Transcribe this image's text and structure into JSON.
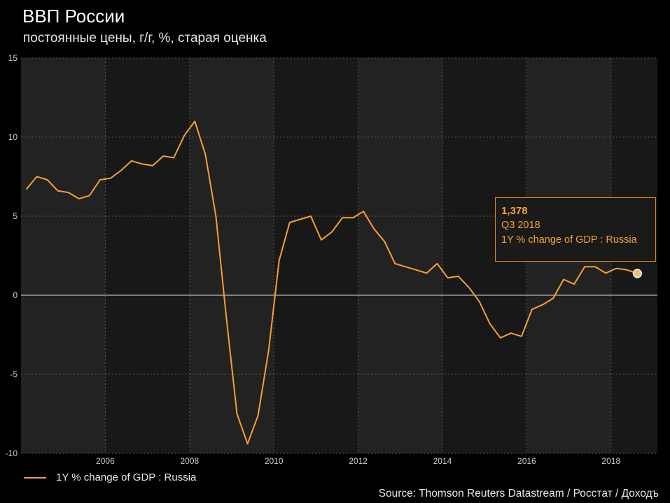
{
  "header": {
    "title": "ВВП России",
    "subtitle": "постоянные цены, г/г, %, старая оценка"
  },
  "footer": {
    "source": "Source: Thomson Reuters Datastream / Росстат / Доходъ"
  },
  "tooltip": {
    "value": "1,378",
    "period": "Q3 2018",
    "series": "1Y % change of GDP : Russia"
  },
  "colors": {
    "background": "#000000",
    "plot_band_light": "#222222",
    "plot_band_dark": "#181818",
    "line": "#f5a031",
    "axis_text": "#cccccc"
  },
  "chart_data": {
    "type": "line",
    "title": "ВВП России",
    "subtitle": "постоянные цены, г/г, %, старая оценка",
    "xlabel": "",
    "ylabel": "",
    "xlim": [
      2004.0,
      2019.1
    ],
    "ylim": [
      -10,
      15
    ],
    "x_ticks": [
      2006,
      2008,
      2010,
      2012,
      2014,
      2016,
      2018
    ],
    "y_ticks": [
      -10,
      -5,
      0,
      5,
      10,
      15
    ],
    "grid": true,
    "legend": "bottom-left",
    "series": [
      {
        "name": "1Y % change of GDP : Russia",
        "color": "#f5a031",
        "x": [
          2004.125,
          2004.375,
          2004.625,
          2004.875,
          2005.125,
          2005.375,
          2005.625,
          2005.875,
          2006.125,
          2006.375,
          2006.625,
          2006.875,
          2007.125,
          2007.375,
          2007.625,
          2007.875,
          2008.125,
          2008.375,
          2008.625,
          2008.875,
          2009.125,
          2009.375,
          2009.625,
          2009.875,
          2010.125,
          2010.375,
          2010.625,
          2010.875,
          2011.125,
          2011.375,
          2011.625,
          2011.875,
          2012.125,
          2012.375,
          2012.625,
          2012.875,
          2013.125,
          2013.375,
          2013.625,
          2013.875,
          2014.125,
          2014.375,
          2014.625,
          2014.875,
          2015.125,
          2015.375,
          2015.625,
          2015.875,
          2016.125,
          2016.375,
          2016.625,
          2016.875,
          2017.125,
          2017.375,
          2017.625,
          2017.875,
          2018.125,
          2018.375,
          2018.625
        ],
        "values": [
          6.7,
          7.5,
          7.3,
          6.6,
          6.5,
          6.1,
          6.3,
          7.3,
          7.4,
          7.9,
          8.5,
          8.3,
          8.2,
          8.8,
          8.7,
          10.1,
          11.0,
          8.9,
          5.0,
          -1.5,
          -7.5,
          -9.4,
          -7.6,
          -3.5,
          2.2,
          4.6,
          4.8,
          5.0,
          3.5,
          4.0,
          4.9,
          4.9,
          5.3,
          4.2,
          3.4,
          2.0,
          1.8,
          1.6,
          1.4,
          2.0,
          1.1,
          1.2,
          0.5,
          -0.4,
          -1.8,
          -2.7,
          -2.4,
          -2.6,
          -0.9,
          -0.6,
          -0.2,
          1.0,
          0.7,
          1.8,
          1.8,
          1.4,
          1.7,
          1.6,
          1.378
        ]
      }
    ]
  }
}
